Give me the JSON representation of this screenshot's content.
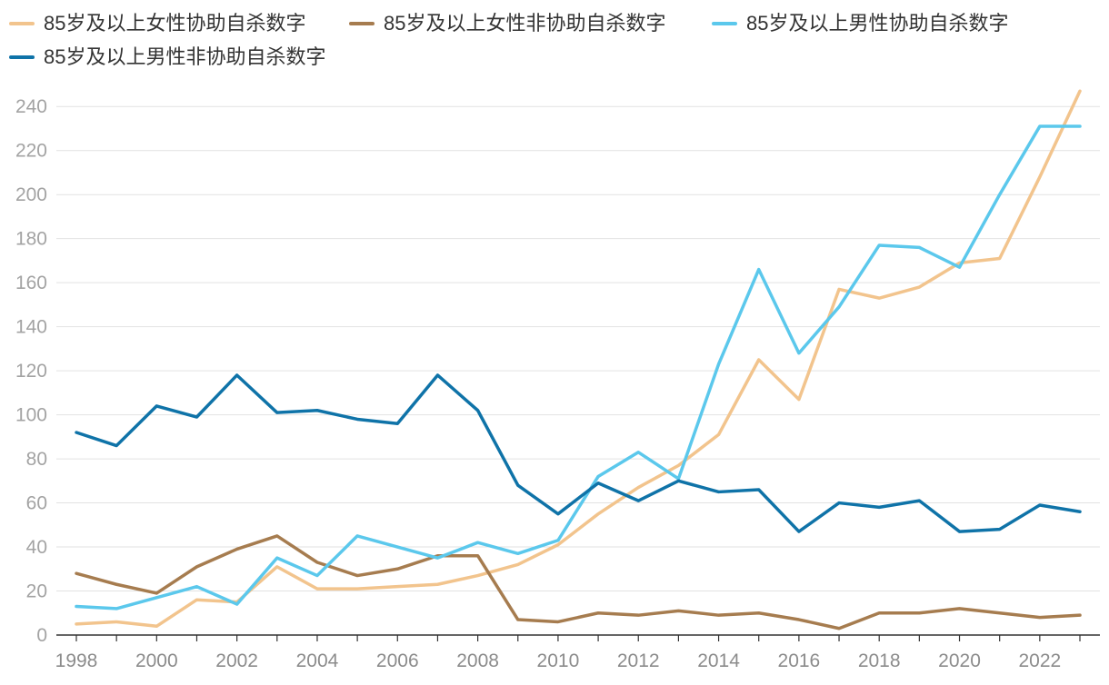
{
  "chart_data": {
    "type": "line",
    "title": "",
    "xlabel": "",
    "ylabel": "",
    "x": [
      1998,
      1999,
      2000,
      2001,
      2002,
      2003,
      2004,
      2005,
      2006,
      2007,
      2008,
      2009,
      2010,
      2011,
      2012,
      2013,
      2014,
      2015,
      2016,
      2017,
      2018,
      2019,
      2020,
      2021,
      2022,
      2023
    ],
    "xlim": [
      1998,
      2023
    ],
    "ylim": [
      0,
      250
    ],
    "xticks": [
      "1998",
      "2000",
      "2002",
      "2004",
      "2006",
      "2008",
      "2010",
      "2012",
      "2014",
      "2016",
      "2018",
      "2020",
      "2022"
    ],
    "yticks": [
      "0",
      "20",
      "40",
      "60",
      "80",
      "100",
      "120",
      "140",
      "160",
      "180",
      "200",
      "220",
      "240"
    ],
    "grid": true,
    "legend_position": "top-left",
    "series": [
      {
        "name": "85岁及以上女性协助自杀数字",
        "color": "#F2C48D",
        "values": [
          5,
          6,
          4,
          16,
          15,
          31,
          21,
          21,
          22,
          23,
          27,
          32,
          41,
          55,
          67,
          77,
          91,
          125,
          107,
          157,
          153,
          158,
          169,
          171,
          208,
          247
        ]
      },
      {
        "name": "85岁及以上女性非协助自杀数字",
        "color": "#A67C4F",
        "values": [
          28,
          23,
          19,
          31,
          39,
          45,
          33,
          27,
          30,
          36,
          36,
          7,
          6,
          10,
          9,
          11,
          9,
          10,
          7,
          3,
          10,
          10,
          12,
          10,
          8,
          9
        ]
      },
      {
        "name": "85岁及以上男性协助自杀数字",
        "color": "#5BC8EC",
        "values": [
          13,
          12,
          17,
          22,
          14,
          35,
          27,
          45,
          40,
          35,
          42,
          37,
          43,
          72,
          83,
          71,
          123,
          166,
          128,
          149,
          177,
          176,
          167,
          200,
          231,
          231
        ]
      },
      {
        "name": "85岁及以上男性非协助自杀数字",
        "color": "#0F73A8",
        "values": [
          92,
          86,
          104,
          99,
          118,
          101,
          102,
          98,
          96,
          118,
          102,
          68,
          55,
          69,
          61,
          70,
          65,
          66,
          47,
          60,
          58,
          61,
          47,
          48,
          59,
          56
        ]
      }
    ]
  }
}
